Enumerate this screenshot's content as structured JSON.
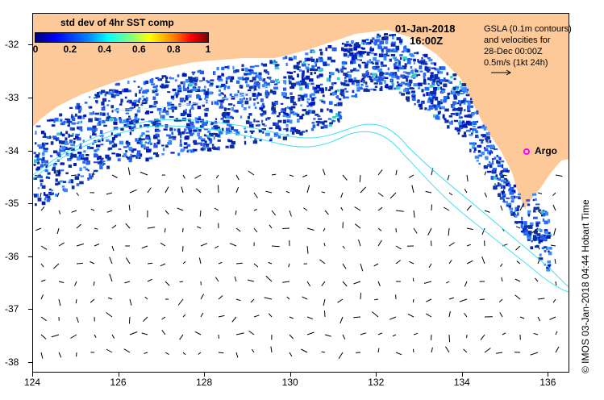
{
  "map": {
    "colorbar": {
      "title": "std dev of 4hr SST comp",
      "labels": [
        "0",
        "0.2",
        "0.4",
        "0.6",
        "0.8",
        "1"
      ],
      "range": [
        0,
        1
      ]
    },
    "date": "01-Jan-2018",
    "time": "16:00Z",
    "legend": {
      "line1": "GSLA (0.1m contours)",
      "line2": "and velocities for",
      "line3": "28-Dec 00:00Z",
      "line4": "0.5m/s (1kt 24h)"
    },
    "argo_label": "Argo",
    "credit": "© IMOS 03-Jan-2018 04:44 Hobart Time",
    "x_ticks": [
      "124",
      "126",
      "128",
      "130",
      "132",
      "134",
      "136"
    ],
    "y_ticks": [
      "-32",
      "-33",
      "-34",
      "-35",
      "-36",
      "-37",
      "-38"
    ],
    "lon_range": [
      124,
      136.5
    ],
    "lat_range": [
      -38.2,
      -31.4
    ],
    "colors": {
      "land": "#fdc999",
      "argo": "#ff00ff",
      "contour": "#40e0f0",
      "data_dark": "#0a2fa8",
      "data_mid": "#1e6bff"
    }
  }
}
